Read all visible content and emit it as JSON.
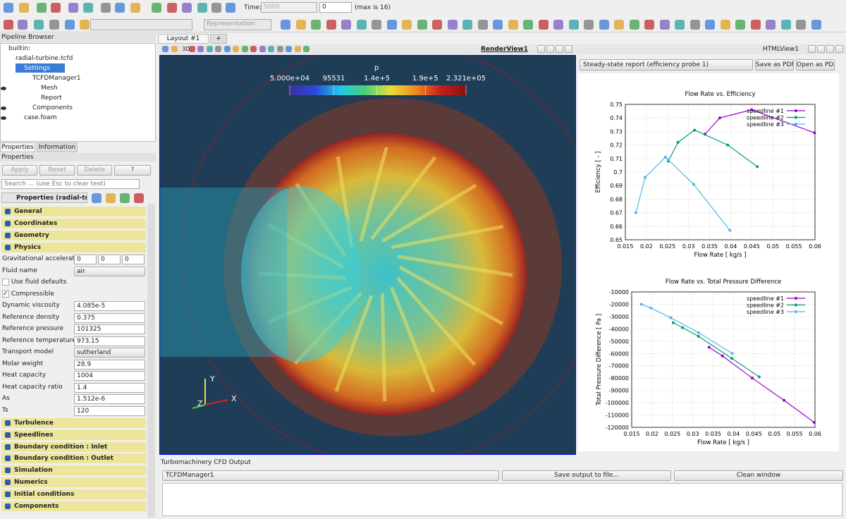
{
  "toolbar": {
    "time_label": "Time:",
    "time_field": "5000",
    "time_step": "0",
    "time_max": "(max is 16)",
    "representation": "Representation"
  },
  "pipeline_browser": {
    "title": "Pipeline Browser",
    "items": [
      "builtin:",
      "radial-turbine.tcfd",
      "Settings",
      "TCFDManager1",
      "Mesh",
      "Report",
      "Components",
      "case.foam"
    ]
  },
  "properties": {
    "tabs": [
      "Properties",
      "Information"
    ],
    "title": "Properties",
    "buttons": [
      "Apply",
      "Reset",
      "Delete",
      "?"
    ],
    "search": "Search ... (use Esc to clear text)",
    "header": "Properties (radial-turl",
    "sections_top": [
      "General",
      "Coordinates",
      "Geometry",
      "Physics"
    ],
    "fields": [
      {
        "label": "Gravitational acceleration",
        "values": [
          "0",
          "0",
          "0"
        ]
      },
      {
        "label": "Fluid name",
        "value": "air",
        "widget": "dropdown"
      },
      {
        "label": "Use fluid defaults",
        "checked": false
      },
      {
        "label": "Compressible",
        "checked": true
      },
      {
        "label": "Dynamic viscosity",
        "value": "4.085e-5"
      },
      {
        "label": "Reference density",
        "value": "0.375"
      },
      {
        "label": "Reference pressure",
        "value": "101325"
      },
      {
        "label": "Reference temperature",
        "value": "973.15"
      },
      {
        "label": "Transport model",
        "value": "sutherland",
        "widget": "dropdown"
      },
      {
        "label": "Molar weight",
        "value": "28.9"
      },
      {
        "label": "Heat capacity",
        "value": "1004"
      },
      {
        "label": "Heat capacity ratio",
        "value": "1.4"
      },
      {
        "label": "As",
        "value": "1.512e-6"
      },
      {
        "label": "Ts",
        "value": "120"
      }
    ],
    "sections_bottom": [
      "Turbulence",
      "Speedlines",
      "Boundary condition : Inlet",
      "Boundary condition : Outlet",
      "Simulation",
      "Numerics",
      "Initial conditions",
      "Components"
    ]
  },
  "layout_tabs": [
    "Layout #1",
    "+"
  ],
  "render_view": {
    "title": "RenderView1",
    "mode": "3D",
    "colorbar": {
      "title": "p",
      "range": [
        50000,
        232100
      ],
      "ticks": [
        {
          "value": 50000,
          "label": "5.000e+04"
        },
        95531,
        {
          "value": 140000,
          "label": "1.4e+5"
        },
        {
          "value": 190000,
          "label": "1.9e+5"
        },
        {
          "value": 232100,
          "label": "2.321e+05"
        }
      ]
    },
    "axes": [
      "Y",
      "Z",
      "X"
    ]
  },
  "html_view": {
    "title": "HTMLView1",
    "report": "Steady-state report (efficiency probe 1)",
    "buttons": [
      "Save as PDF",
      "Open as PDF"
    ],
    "charts": [
      {
        "type": "line",
        "title": "Flow Rate  vs. Efficiency",
        "x_label": "Flow Rate [ kg/s ]",
        "y_label": "Efficiency [ - ]",
        "xlim": [
          0.015,
          0.06
        ],
        "xticks": [
          0.015,
          0.02,
          0.025,
          0.03,
          0.035,
          0.04,
          0.045,
          0.05,
          0.055,
          0.06
        ],
        "ylim": [
          0.65,
          0.75
        ],
        "yticks": [
          0.65,
          0.66,
          0.67,
          0.68,
          0.69,
          0.7,
          0.71,
          0.72,
          0.73,
          0.74,
          0.75
        ],
        "grid": true,
        "legend": "top right",
        "series": [
          {
            "name": "speedline #1",
            "color": "#9400d3",
            "x": [
              0.0339,
              0.0374,
              0.045,
              0.0599
            ],
            "values": [
              0.728,
              0.74,
              0.746,
              0.729
            ]
          },
          {
            "name": "speedline #2",
            "color": "#009e73",
            "x": [
              0.0252,
              0.0275,
              0.0314,
              0.0393,
              0.0463
            ],
            "values": [
              0.708,
              0.722,
              0.731,
              0.72,
              0.704
            ]
          },
          {
            "name": "speedline #3",
            "color": "#56b4e9",
            "x": [
              0.0175,
              0.0197,
              0.0245,
              0.0252,
              0.0312,
              0.0398
            ],
            "values": [
              0.67,
              0.696,
              0.711,
              0.709,
              0.691,
              0.657
            ]
          }
        ]
      },
      {
        "type": "line",
        "title": "Flow Rate  vs. Total Pressure Difference",
        "x_label": "Flow Rate [ kg/s ]",
        "y_label": "Total Pressure Difference [ Pa ]",
        "xlim": [
          0.015,
          0.06
        ],
        "xticks": [
          0.015,
          0.02,
          0.025,
          0.03,
          0.035,
          0.04,
          0.045,
          0.05,
          0.055,
          0.06
        ],
        "ylim": [
          -120000,
          -10000
        ],
        "yticks": [
          -10000,
          -20000,
          -30000,
          -40000,
          -50000,
          -60000,
          -70000,
          -80000,
          -90000,
          -100000,
          -110000,
          -120000
        ],
        "grid": true,
        "legend": "top right",
        "series": [
          {
            "name": "speedline #1",
            "color": "#9400d3",
            "x": [
              0.034,
              0.0373,
              0.0446,
              0.0524,
              0.0598
            ],
            "values": [
              -55000,
              -62000,
              -80000,
              -98000,
              -116000
            ]
          },
          {
            "name": "speedline #2",
            "color": "#009e73",
            "x": [
              0.0252,
              0.0275,
              0.0314,
              0.0396,
              0.0463
            ],
            "values": [
              -35000,
              -39000,
              -46000,
              -64000,
              -79000
            ]
          },
          {
            "name": "speedline #3",
            "color": "#56b4e9",
            "x": [
              0.0174,
              0.0197,
              0.0246,
              0.0314,
              0.0397
            ],
            "values": [
              -20000,
              -23000,
              -31000,
              -43000,
              -60000
            ]
          }
        ]
      }
    ]
  },
  "output": {
    "title": "Turbomachinery CFD Output",
    "manager": "TCFDManager1",
    "buttons": [
      "Save output to file...",
      "Clean window"
    ]
  }
}
